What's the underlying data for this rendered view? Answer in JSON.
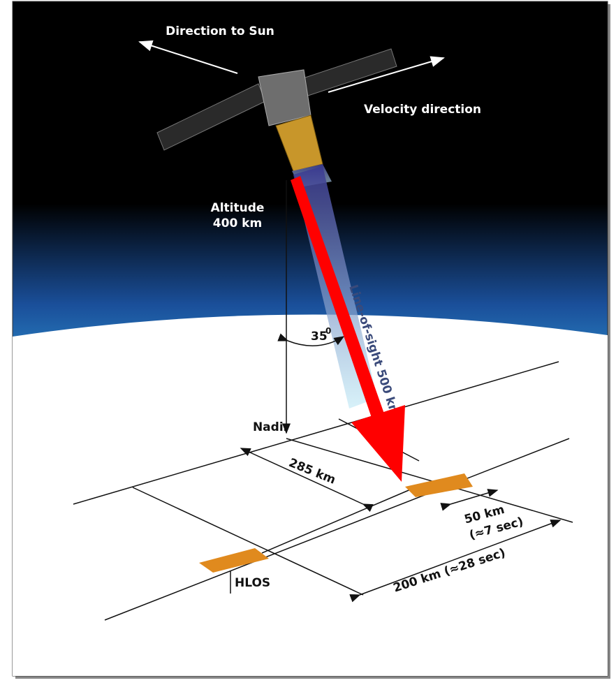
{
  "labels": {
    "sun": "Direction to Sun",
    "velocity": "Velocity direction",
    "altitude": "Altitude",
    "altitude_value": "400 km",
    "angle": "35",
    "angle_unit": "0",
    "line_of_sight": "Line-of-sight 500 km",
    "nadir": "Nadir",
    "cross_track": "285 km",
    "segment": "50 km",
    "segment_time": "(≈7 sec)",
    "spacing": "200 km (≈28 sec)",
    "hlos": "HLOS"
  }
}
